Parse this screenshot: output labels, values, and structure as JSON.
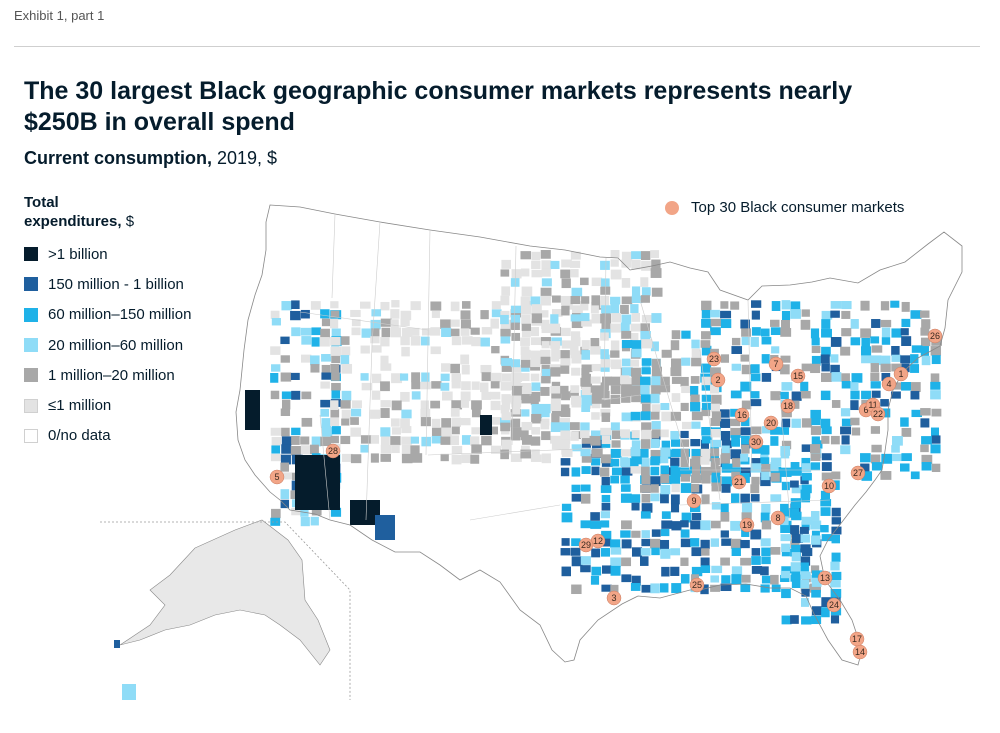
{
  "header": {
    "exhibit_label": "Exhibit 1, part 1",
    "title": "The 30 largest Black geographic consumer markets represents nearly $250B in overall spend",
    "subtitle_bold": "Current consumption,",
    "subtitle_rest": " 2019, $"
  },
  "legend": {
    "title": "Total expenditures,",
    "unit": " $",
    "items": [
      {
        "label": ">1 billion",
        "color": "#051c2c"
      },
      {
        "label": "150 million - 1 billion",
        "color": "#1f5f9e"
      },
      {
        "label": "60 million–150 million",
        "color": "#1fb2e8"
      },
      {
        "label": "20 million–60 million",
        "color": "#8fdcf7"
      },
      {
        "label": "1 million–20 million",
        "color": "#a8a8a8"
      },
      {
        "label": "≤1 million",
        "color": "#e3e3e3"
      },
      {
        "label": "0/no data",
        "color": "#ffffff"
      }
    ]
  },
  "markers_key": {
    "label": "Top 30 Black consumer markets",
    "color": "#f2a587"
  },
  "markets": [
    {
      "rank": "1"
    },
    {
      "rank": "2"
    },
    {
      "rank": "3"
    },
    {
      "rank": "4"
    },
    {
      "rank": "5"
    },
    {
      "rank": "6"
    },
    {
      "rank": "7"
    },
    {
      "rank": "8"
    },
    {
      "rank": "9"
    },
    {
      "rank": "10"
    },
    {
      "rank": "11"
    },
    {
      "rank": "12"
    },
    {
      "rank": "13"
    },
    {
      "rank": "14"
    },
    {
      "rank": "15"
    },
    {
      "rank": "16"
    },
    {
      "rank": "17"
    },
    {
      "rank": "18"
    },
    {
      "rank": "19"
    },
    {
      "rank": "20"
    },
    {
      "rank": "21"
    },
    {
      "rank": "22"
    },
    {
      "rank": "23"
    },
    {
      "rank": "24"
    },
    {
      "rank": "25"
    },
    {
      "rank": "26"
    },
    {
      "rank": "27"
    },
    {
      "rank": "28"
    },
    {
      "rank": "29"
    },
    {
      "rank": "30"
    }
  ]
}
